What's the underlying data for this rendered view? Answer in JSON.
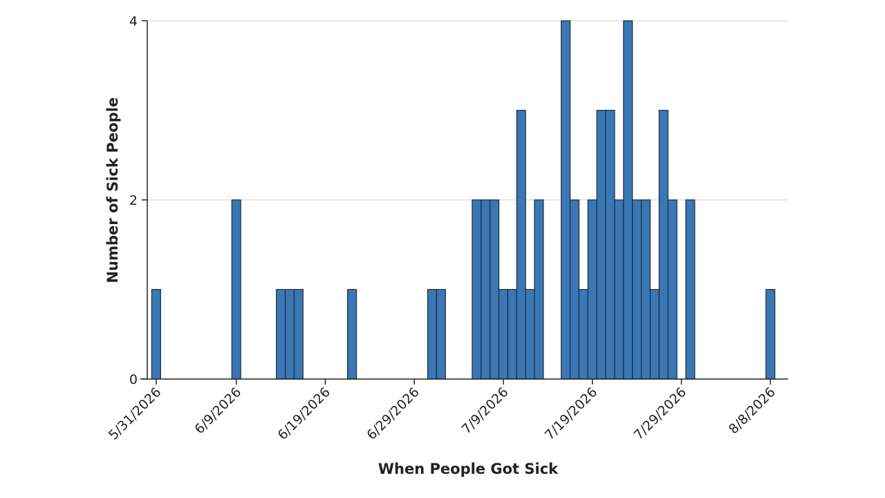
{
  "chart_data": {
    "type": "bar",
    "title": "",
    "xlabel": "When People Got Sick",
    "ylabel": "Number of Sick People",
    "x": [
      "2026-05-31",
      "2026-06-09",
      "2026-06-14",
      "2026-06-15",
      "2026-06-16",
      "2026-06-22",
      "2026-07-01",
      "2026-07-02",
      "2026-07-06",
      "2026-07-07",
      "2026-07-08",
      "2026-07-09",
      "2026-07-10",
      "2026-07-11",
      "2026-07-12",
      "2026-07-13",
      "2026-07-16",
      "2026-07-17",
      "2026-07-18",
      "2026-07-19",
      "2026-07-20",
      "2026-07-21",
      "2026-07-22",
      "2026-07-23",
      "2026-07-24",
      "2026-07-25",
      "2026-07-26",
      "2026-07-27",
      "2026-07-28",
      "2026-07-30",
      "2026-08-08"
    ],
    "values": [
      1,
      2,
      1,
      1,
      1,
      1,
      1,
      1,
      2,
      2,
      2,
      1,
      1,
      3,
      1,
      2,
      4,
      2,
      1,
      2,
      3,
      3,
      2,
      4,
      2,
      2,
      1,
      3,
      2,
      2,
      1
    ],
    "xlim": [
      "2026-05-30",
      "2026-08-10"
    ],
    "ylim": [
      0,
      4
    ],
    "x_ticks": [
      "5/31/2026",
      "6/9/2026",
      "6/19/2026",
      "6/29/2026",
      "7/9/2026",
      "7/19/2026",
      "7/29/2026",
      "8/8/2026"
    ],
    "x_tick_dates": [
      "2026-05-31",
      "2026-06-09",
      "2026-06-19",
      "2026-06-29",
      "2026-07-09",
      "2026-07-19",
      "2026-07-29",
      "2026-08-08"
    ],
    "y_ticks": [
      "0",
      "2",
      "4"
    ],
    "y_tick_values": [
      0,
      2,
      4
    ],
    "grid": "horizontal",
    "colors": {
      "bar": "#3a77b4",
      "edge": "#1b2a3a",
      "grid": "#d0d0d0",
      "axis": "#222222"
    }
  }
}
